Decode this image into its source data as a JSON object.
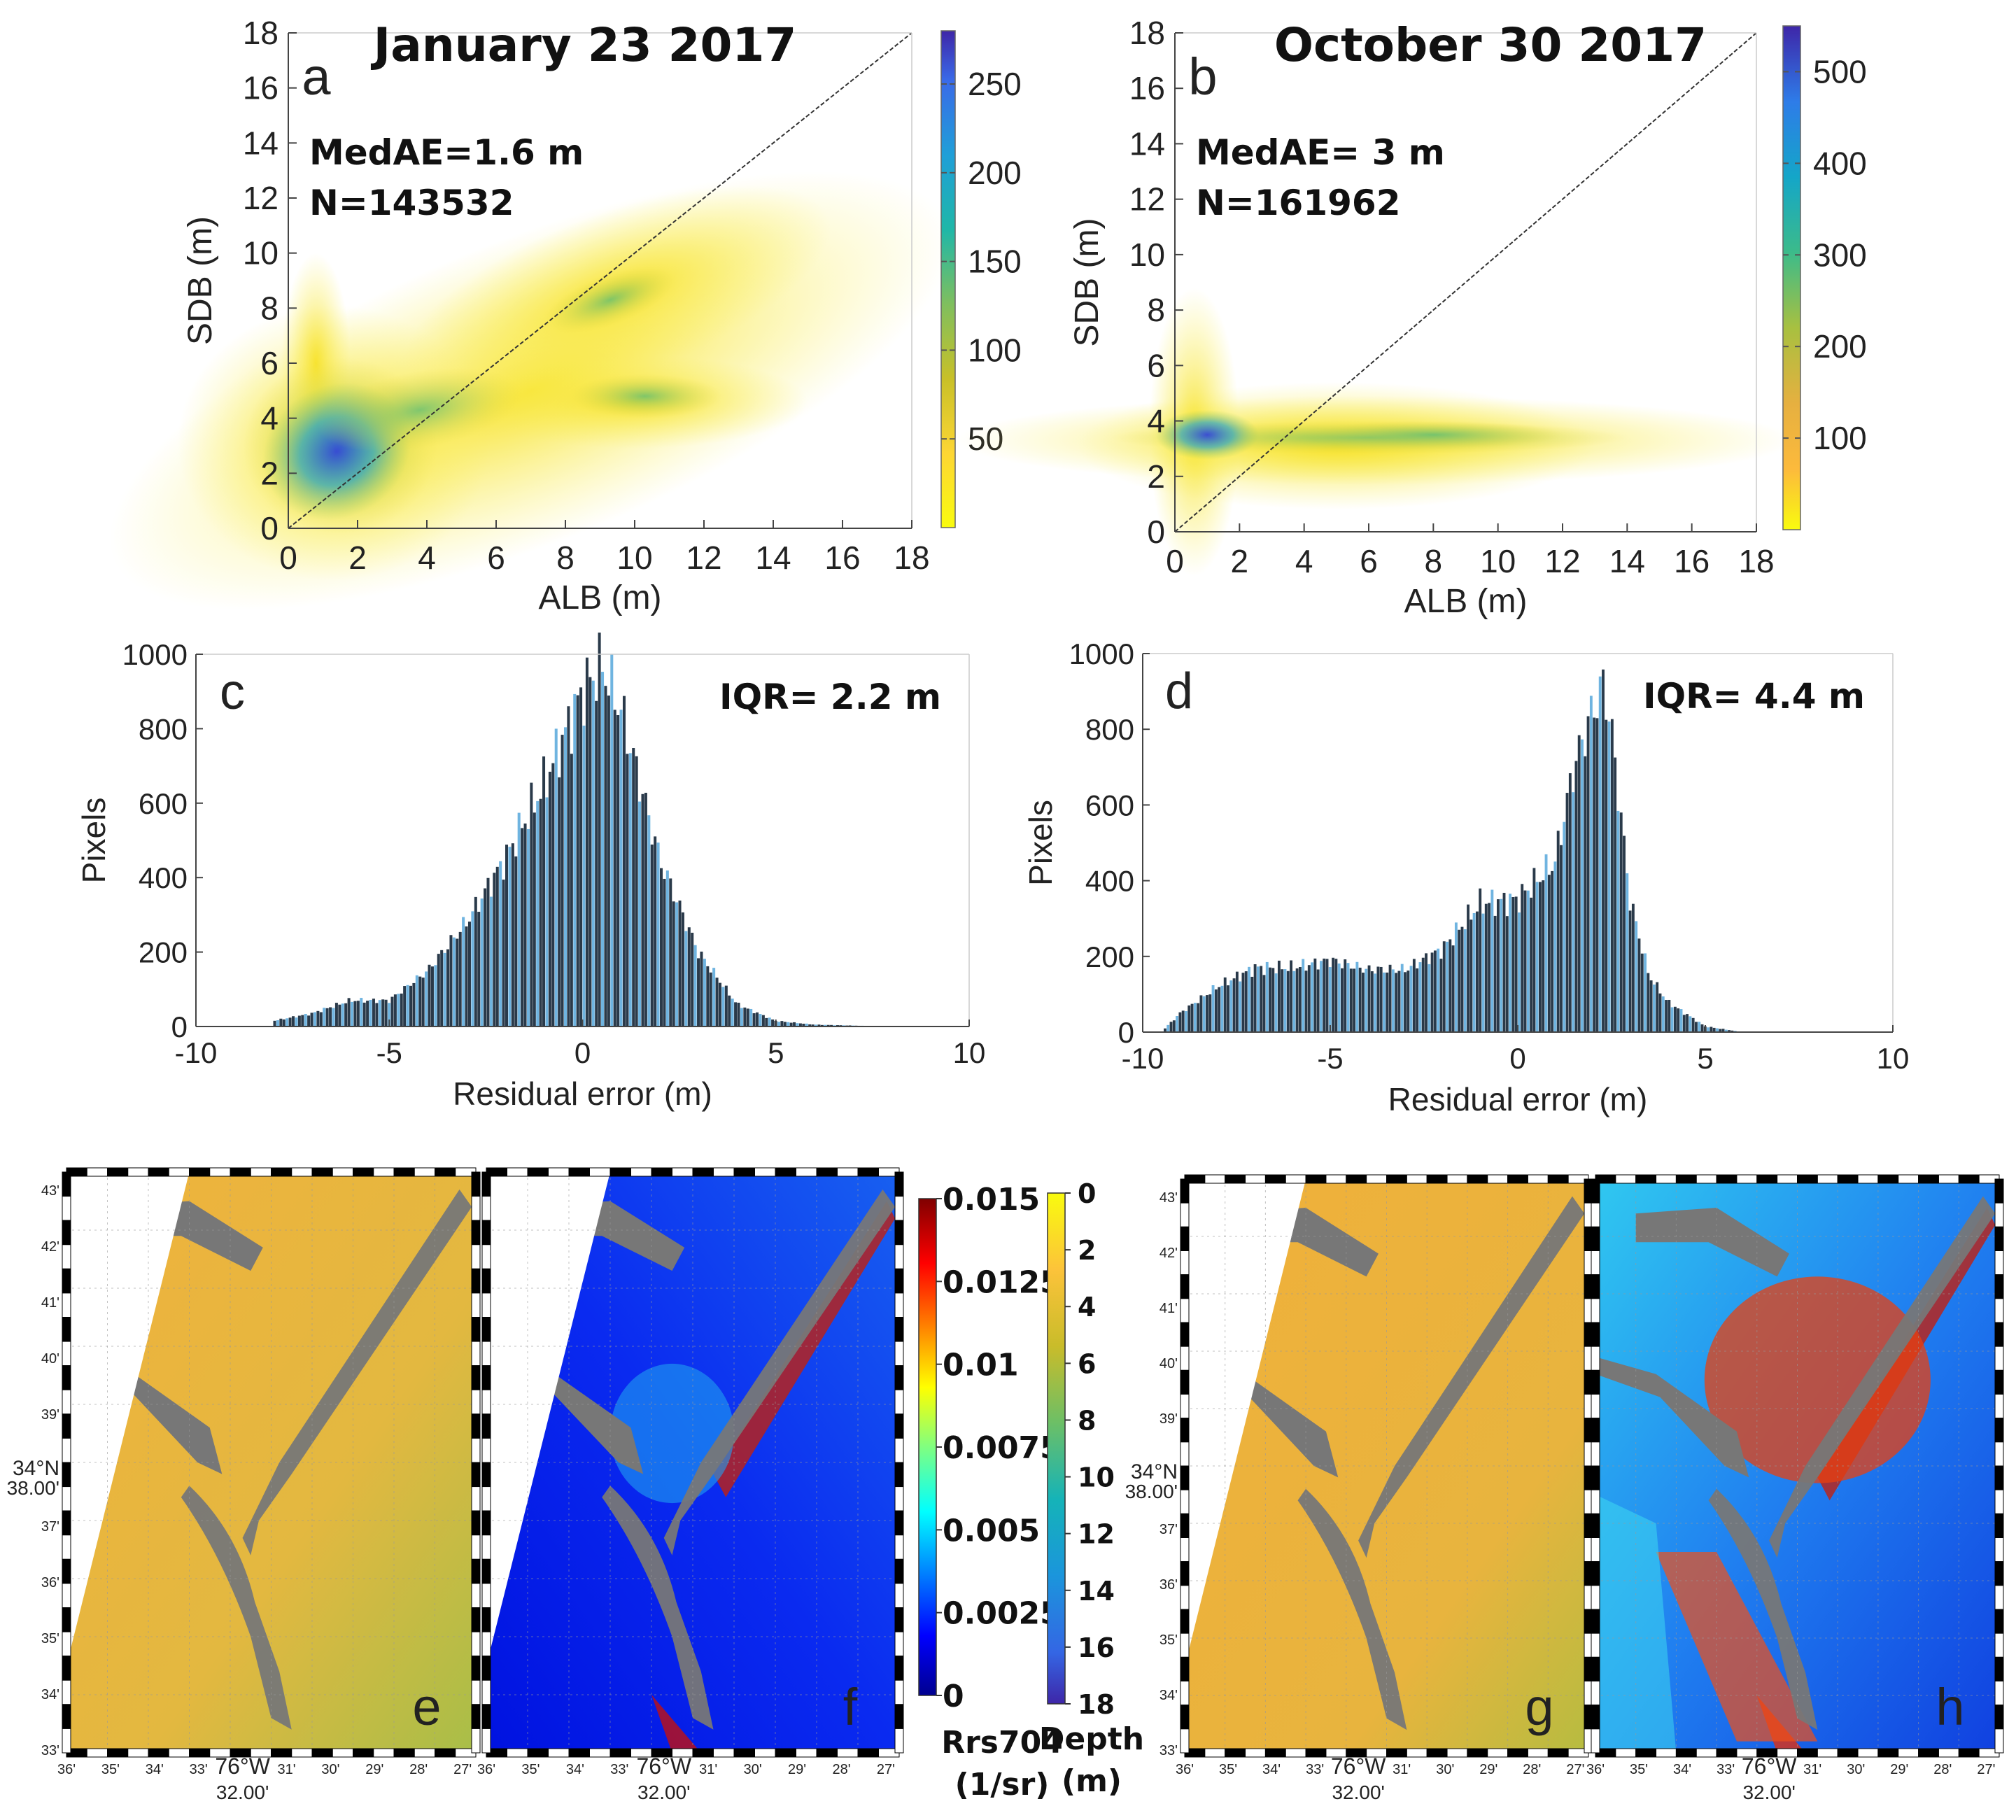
{
  "panels": {
    "a": {
      "letter": "a",
      "title": "January 23 2017",
      "medae": "MedAE=1.6 m",
      "n": "N=143532",
      "xlabel": "ALB (m)",
      "ylabel": "SDB (m)",
      "xticks": [
        "0",
        "2",
        "4",
        "6",
        "8",
        "10",
        "12",
        "14",
        "16",
        "18"
      ],
      "yticks": [
        "0",
        "2",
        "4",
        "6",
        "8",
        "10",
        "12",
        "14",
        "16",
        "18"
      ],
      "cbar_ticks": [
        "50",
        "100",
        "150",
        "200",
        "250"
      ]
    },
    "b": {
      "letter": "b",
      "title": "October 30 2017",
      "medae": "MedAE= 3 m",
      "n": "N=161962",
      "xlabel": "ALB (m)",
      "ylabel": "SDB (m)",
      "xticks": [
        "0",
        "2",
        "4",
        "6",
        "8",
        "10",
        "12",
        "14",
        "16",
        "18"
      ],
      "yticks": [
        "0",
        "2",
        "4",
        "6",
        "8",
        "10",
        "12",
        "14",
        "16",
        "18"
      ],
      "cbar_ticks": [
        "100",
        "200",
        "300",
        "400",
        "500"
      ]
    },
    "c": {
      "letter": "c",
      "iqr": "IQR= 2.2 m",
      "xlabel": "Residual error (m)",
      "ylabel": "Pixels",
      "xticks": [
        "-10",
        "-5",
        "0",
        "5",
        "10"
      ],
      "yticks": [
        "0",
        "200",
        "400",
        "600",
        "800",
        "1000"
      ]
    },
    "d": {
      "letter": "d",
      "iqr": "IQR= 4.4 m",
      "xlabel": "Residual error (m)",
      "ylabel": "Pixels",
      "xticks": [
        "-10",
        "-5",
        "0",
        "5",
        "10"
      ],
      "yticks": [
        "0",
        "200",
        "400",
        "600",
        "800",
        "1000"
      ]
    },
    "maps": {
      "letters": [
        "e",
        "f",
        "g",
        "h"
      ],
      "lat_ticks": [
        "43'",
        "42'",
        "41'",
        "40'",
        "39'",
        "34°N",
        "37'",
        "36'",
        "35'",
        "34'",
        "33'"
      ],
      "lat_center_sub": "38.00'",
      "lon_ticks": [
        "36'",
        "35'",
        "34'",
        "33'",
        "76°W",
        "31'",
        "30'",
        "29'",
        "28'",
        "27'"
      ],
      "lon_center_sub": "32.00'",
      "rrs_ticks": [
        "0.015",
        "0.0125",
        "0.01",
        "0.0075",
        "0.005",
        "0.0025",
        "0"
      ],
      "rrs_label": [
        "Rrs704",
        "(1/sr)"
      ],
      "depth_ticks": [
        "0",
        "2",
        "4",
        "6",
        "8",
        "10",
        "12",
        "14",
        "16",
        "18"
      ],
      "depth_label": [
        "Depth",
        "(m)"
      ]
    }
  },
  "chart_data": [
    {
      "type": "scatter",
      "title": "January 23 2017",
      "xlabel": "ALB (m)",
      "ylabel": "SDB (m)",
      "xlim": [
        0,
        18
      ],
      "ylim": [
        0,
        18
      ],
      "note": "density scatter with 1:1 line",
      "medae_m": 1.6,
      "n": 143532,
      "colorbar_range": [
        0,
        280
      ],
      "density_clusters": [
        {
          "x": 1.3,
          "y": 2.8,
          "count": 250
        },
        {
          "x": 3.5,
          "y": 4.3,
          "count": 120
        },
        {
          "x": 9.5,
          "y": 8.5,
          "count": 30
        },
        {
          "x": 10.5,
          "y": 4.8,
          "count": 30
        }
      ]
    },
    {
      "type": "scatter",
      "title": "October 30 2017",
      "xlabel": "ALB (m)",
      "ylabel": "SDB (m)",
      "xlim": [
        0,
        18
      ],
      "ylim": [
        0,
        18
      ],
      "note": "density scatter with 1:1 line",
      "medae_m": 3,
      "n": 161962,
      "colorbar_range": [
        0,
        550
      ],
      "density_clusters": [
        {
          "x": 1.0,
          "y": 3.5,
          "count": 500
        },
        {
          "x": 6,
          "y": 3.5,
          "count": 150
        },
        {
          "x": 11,
          "y": 3.4,
          "count": 60
        }
      ]
    },
    {
      "type": "bar",
      "title": "",
      "xlabel": "Residual error (m)",
      "ylabel": "Pixels",
      "xlim": [
        -10,
        10
      ],
      "ylim": [
        0,
        1000
      ],
      "iqr_m": 2.2,
      "x": [
        -8,
        -7,
        -6,
        -5,
        -4,
        -3,
        -2,
        -1,
        0,
        0.5,
        1,
        2,
        3,
        4,
        5,
        6,
        8
      ],
      "values": [
        15,
        35,
        70,
        70,
        150,
        280,
        450,
        650,
        900,
        970,
        850,
        450,
        200,
        60,
        15,
        5,
        0
      ]
    },
    {
      "type": "bar",
      "title": "",
      "xlabel": "Residual error (m)",
      "ylabel": "Pixels",
      "xlim": [
        -10,
        10
      ],
      "ylim": [
        0,
        1000
      ],
      "iqr_m": 4.4,
      "x": [
        -9.5,
        -9,
        -8,
        -7,
        -6,
        -5,
        -4,
        -3,
        -2,
        -1,
        0,
        1,
        1.5,
        2,
        2.3,
        2.5,
        3,
        3.5,
        4,
        5,
        6
      ],
      "values": [
        0,
        50,
        120,
        170,
        170,
        190,
        165,
        165,
        220,
        340,
        350,
        450,
        700,
        850,
        920,
        800,
        350,
        150,
        80,
        15,
        0
      ]
    }
  ]
}
